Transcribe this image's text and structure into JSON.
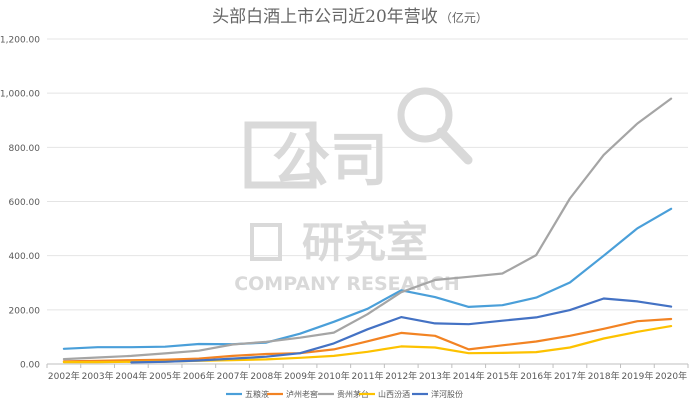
{
  "chart_data": {
    "type": "line",
    "title": "头部白酒上市公司近20年营收",
    "unit_note": "（亿元）",
    "xlabel": "",
    "ylabel": "",
    "categories": [
      "2002年",
      "2003年",
      "2004年",
      "2005年",
      "2006年",
      "2007年",
      "2008年",
      "2009年",
      "2010年",
      "2011年",
      "2012年",
      "2013年",
      "2014年",
      "2015年",
      "2016年",
      "2017年",
      "2018年",
      "2019年",
      "2020年"
    ],
    "y_ticks": [
      "0.00",
      "200.00",
      "400.00",
      "600.00",
      "800.00",
      "1,000.00",
      "1,200.00"
    ],
    "ylim": [
      0,
      1200
    ],
    "grid": true,
    "legend_position": "bottom",
    "series": [
      {
        "name": "五粮液",
        "color": "#4a9fd9",
        "values": [
          56,
          62,
          62,
          64,
          74,
          73,
          79,
          112,
          156,
          204,
          272,
          247,
          211,
          217,
          245,
          301,
          400,
          501,
          573
        ]
      },
      {
        "name": "泸州老窖",
        "color": "#f28323",
        "values": [
          10,
          12,
          14,
          16,
          20,
          30,
          37,
          40,
          54,
          84,
          115,
          104,
          54,
          69,
          83,
          104,
          130,
          158,
          166
        ]
      },
      {
        "name": "贵州茅台",
        "color": "#a5a5a5",
        "values": [
          18,
          24,
          30,
          39,
          49,
          72,
          82,
          97,
          116,
          184,
          265,
          310,
          322,
          334,
          402,
          611,
          772,
          888,
          980
        ]
      },
      {
        "name": "山西汾酒",
        "color": "#fdc200",
        "values": [
          7,
          7,
          8,
          9,
          12,
          14,
          17,
          23,
          30,
          45,
          65,
          61,
          40,
          41,
          44,
          61,
          94,
          119,
          140
        ]
      },
      {
        "name": "洋河股份",
        "color": "#4472c4",
        "values": [
          null,
          null,
          6,
          8,
          13,
          20,
          27,
          40,
          76,
          128,
          173,
          150,
          147,
          160,
          172,
          199,
          242,
          231,
          212
        ]
      }
    ]
  },
  "watermark": {
    "brand_cn_top": "公司",
    "brand_cn_bottom": "研究室",
    "brand_en": "COMPANY RESEARCH"
  }
}
